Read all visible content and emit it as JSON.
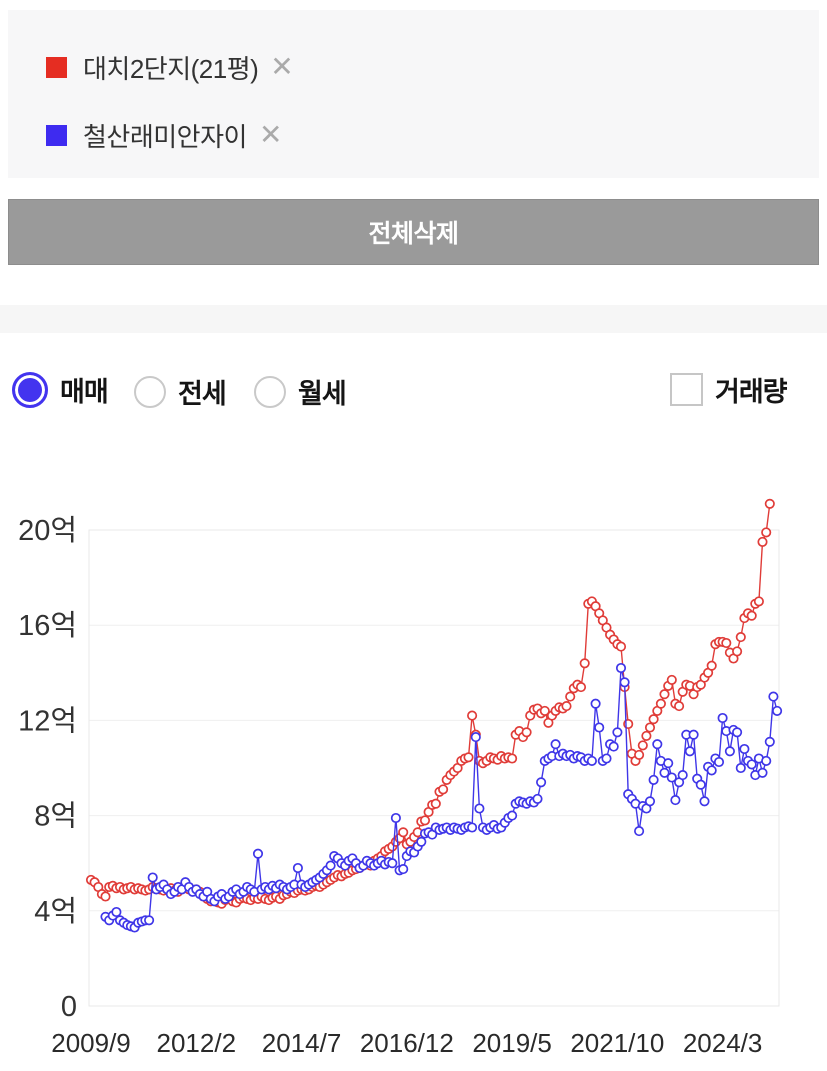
{
  "legend": {
    "items": [
      {
        "label": "대치2단지(21평)",
        "color": "#e52d22",
        "remove_icon": "✕"
      },
      {
        "label": "철산래미안자이",
        "color": "#3e2bf0",
        "remove_icon": "✕"
      }
    ]
  },
  "delete_all_button": {
    "label": "전체삭제"
  },
  "controls": {
    "radios": [
      {
        "label": "매매",
        "selected": true
      },
      {
        "label": "전세",
        "selected": false
      },
      {
        "label": "월세",
        "selected": false
      }
    ],
    "checkbox": {
      "label": "거래량",
      "checked": false
    },
    "accent_color": "#4334ef"
  },
  "chart_data": {
    "type": "line",
    "unit": "억",
    "x_is_months_from": "2009/9",
    "x_tick_labels": [
      "2009/9",
      "2012/2",
      "2014/7",
      "2016/12",
      "2019/5",
      "2021/10",
      "2024/3"
    ],
    "x_tick_month_indices": [
      0,
      29,
      58,
      87,
      116,
      145,
      174
    ],
    "y_ticks": [
      0,
      4,
      8,
      12,
      16,
      20
    ],
    "y_tick_labels": [
      "0",
      "4억",
      "8억",
      "12억",
      "16억",
      "20억"
    ],
    "ylim": [
      0,
      21.5
    ],
    "grid": true,
    "marker": "open-circle",
    "series": [
      {
        "name": "대치2단지(21평)",
        "color": "#e03c38",
        "values": [
          5.3,
          5.2,
          5.0,
          4.7,
          4.6,
          5.0,
          5.05,
          4.95,
          5.0,
          4.9,
          4.95,
          5.0,
          4.9,
          4.95,
          4.9,
          4.85,
          4.9,
          5.0,
          4.95,
          4.9,
          4.85,
          4.9,
          4.95,
          4.85,
          4.8,
          4.9,
          5.0,
          4.9,
          4.85,
          4.9,
          4.8,
          4.6,
          4.5,
          4.4,
          4.45,
          4.35,
          4.3,
          4.45,
          4.5,
          4.4,
          4.35,
          4.5,
          4.55,
          4.5,
          4.45,
          4.55,
          4.5,
          4.6,
          4.5,
          4.45,
          4.55,
          4.6,
          4.5,
          4.65,
          4.7,
          4.8,
          4.75,
          4.85,
          4.9,
          4.85,
          4.9,
          5.0,
          5.05,
          5.0,
          5.1,
          5.2,
          5.3,
          5.4,
          5.5,
          5.45,
          5.55,
          5.6,
          5.7,
          5.75,
          5.8,
          5.9,
          6.0,
          5.9,
          6.1,
          6.2,
          6.3,
          6.5,
          6.6,
          6.7,
          6.9,
          7.05,
          7.3,
          6.8,
          6.9,
          7.1,
          7.3,
          7.75,
          7.8,
          8.15,
          8.45,
          8.5,
          9.0,
          9.1,
          9.5,
          9.7,
          9.85,
          10.0,
          10.3,
          10.4,
          10.45,
          12.2,
          11.4,
          10.3,
          10.2,
          10.3,
          10.45,
          10.4,
          10.35,
          10.5,
          10.4,
          10.45,
          10.4,
          11.4,
          11.55,
          11.3,
          11.5,
          12.2,
          12.45,
          12.5,
          12.3,
          12.4,
          11.9,
          12.2,
          12.4,
          12.55,
          12.5,
          12.6,
          13.0,
          13.35,
          13.5,
          13.4,
          14.4,
          16.9,
          17.0,
          16.8,
          16.5,
          16.2,
          15.9,
          15.6,
          15.4,
          15.2,
          15.1,
          13.4,
          11.85,
          10.6,
          10.3,
          10.55,
          10.95,
          11.35,
          11.7,
          12.05,
          12.4,
          12.7,
          13.1,
          13.45,
          13.7,
          12.7,
          12.6,
          13.2,
          13.5,
          13.45,
          13.1,
          13.4,
          13.5,
          13.8,
          14.0,
          14.3,
          15.2,
          15.3,
          15.3,
          15.25,
          14.85,
          14.6,
          14.9,
          15.5,
          16.3,
          16.5,
          16.4,
          16.9,
          17.0,
          19.5,
          19.9,
          21.1,
          null,
          null
        ]
      },
      {
        "name": "철산래미안자이",
        "color": "#3f36e8",
        "values": [
          null,
          null,
          null,
          null,
          3.75,
          3.6,
          3.8,
          3.95,
          3.6,
          3.5,
          3.4,
          3.35,
          3.3,
          3.5,
          3.55,
          3.6,
          3.6,
          5.4,
          4.9,
          5.0,
          5.1,
          4.9,
          4.7,
          4.8,
          5.0,
          4.9,
          5.2,
          5.0,
          4.8,
          4.9,
          4.7,
          4.6,
          4.8,
          4.5,
          4.4,
          4.6,
          4.7,
          4.5,
          4.6,
          4.8,
          4.9,
          4.7,
          4.8,
          5.0,
          4.9,
          4.8,
          6.4,
          4.9,
          5.0,
          4.9,
          5.05,
          4.95,
          5.1,
          5.0,
          4.9,
          5.0,
          5.1,
          5.8,
          5.1,
          5.0,
          5.1,
          5.2,
          5.3,
          5.4,
          5.55,
          5.7,
          5.9,
          6.3,
          6.2,
          6.0,
          5.9,
          6.1,
          6.2,
          6.0,
          5.8,
          5.9,
          6.1,
          6.0,
          5.9,
          6.0,
          6.1,
          5.95,
          6.05,
          6.0,
          7.9,
          5.7,
          5.75,
          6.3,
          6.5,
          6.45,
          6.7,
          6.9,
          7.25,
          7.3,
          7.2,
          7.5,
          7.4,
          7.45,
          7.5,
          7.4,
          7.5,
          7.45,
          7.4,
          7.5,
          7.55,
          7.5,
          11.3,
          8.3,
          7.5,
          7.4,
          7.5,
          7.6,
          7.45,
          7.5,
          7.7,
          7.9,
          8.0,
          8.5,
          8.6,
          8.55,
          8.5,
          8.6,
          8.55,
          8.7,
          9.4,
          10.3,
          10.4,
          10.5,
          11.0,
          10.5,
          10.6,
          10.5,
          10.55,
          10.4,
          10.5,
          10.45,
          10.3,
          10.4,
          10.3,
          12.7,
          11.7,
          10.3,
          10.4,
          11.0,
          10.9,
          11.5,
          14.2,
          13.6,
          8.9,
          8.7,
          8.5,
          7.35,
          8.4,
          8.3,
          8.6,
          9.5,
          11.0,
          10.3,
          9.8,
          10.2,
          9.6,
          8.65,
          9.4,
          9.7,
          11.4,
          10.7,
          11.4,
          9.55,
          9.3,
          8.6,
          10.05,
          9.9,
          10.4,
          10.25,
          12.1,
          11.55,
          10.7,
          11.6,
          11.5,
          10.0,
          10.8,
          10.3,
          10.15,
          9.7,
          10.4,
          9.8,
          10.3,
          11.1,
          13.0,
          12.4
        ]
      }
    ]
  }
}
